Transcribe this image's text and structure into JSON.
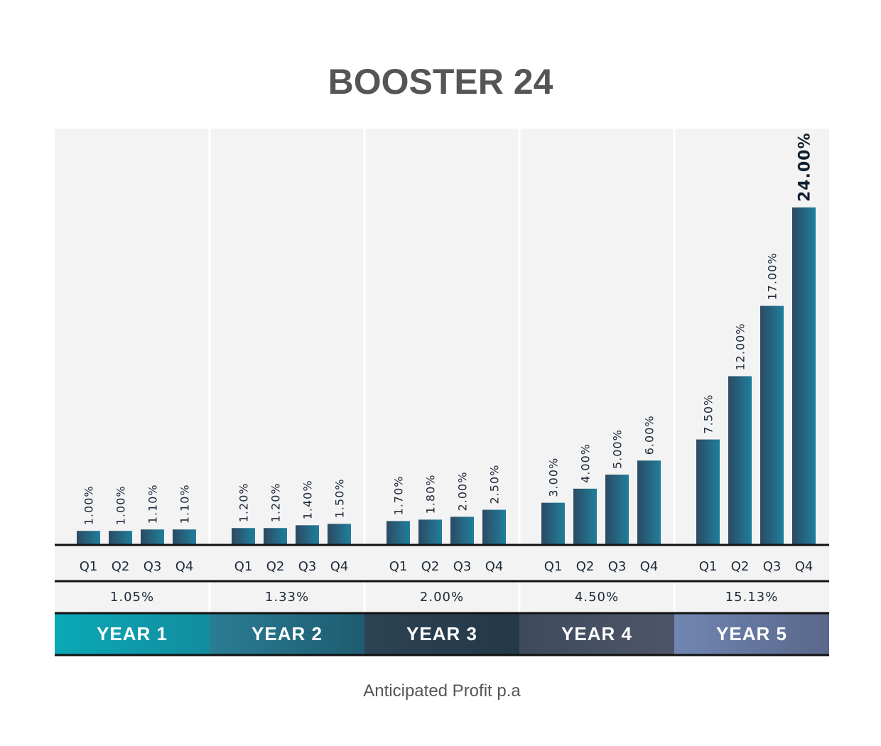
{
  "chart_data": {
    "type": "bar",
    "title": "BOOSTER 24",
    "xlabel": "Anticipated Profit p.a",
    "ylabel": "",
    "ylim": [
      0,
      24
    ],
    "grid": false,
    "groups": [
      {
        "label": "YEAR 1",
        "color": "#0aa9b6",
        "color2": "#128c9e",
        "average": "1.05%",
        "categories": [
          "Q1",
          "Q2",
          "Q3",
          "Q4"
        ],
        "values": [
          1.0,
          1.0,
          1.1,
          1.1
        ],
        "value_labels": [
          "1.00%",
          "1.00%",
          "1.10%",
          "1.10%"
        ]
      },
      {
        "label": "YEAR 2",
        "color": "#2a7d94",
        "color2": "#1e5c70",
        "average": "1.33%",
        "categories": [
          "Q1",
          "Q2",
          "Q3",
          "Q4"
        ],
        "values": [
          1.2,
          1.2,
          1.4,
          1.5
        ],
        "value_labels": [
          "1.20%",
          "1.20%",
          "1.40%",
          "1.50%"
        ]
      },
      {
        "label": "YEAR 3",
        "color": "#2c4354",
        "color2": "#243847",
        "average": "2.00%",
        "categories": [
          "Q1",
          "Q2",
          "Q3",
          "Q4"
        ],
        "values": [
          1.7,
          1.8,
          2.0,
          2.5
        ],
        "value_labels": [
          "1.70%",
          "1.80%",
          "2.00%",
          "2.50%"
        ]
      },
      {
        "label": "YEAR 4",
        "color": "#3e4a5c",
        "color2": "#4d5668",
        "average": "4.50%",
        "categories": [
          "Q1",
          "Q2",
          "Q3",
          "Q4"
        ],
        "values": [
          3.0,
          4.0,
          5.0,
          6.0
        ],
        "value_labels": [
          "3.00%",
          "4.00%",
          "5.00%",
          "6.00%"
        ]
      },
      {
        "label": "YEAR 5",
        "color": "#7086b2",
        "color2": "#59678a",
        "average": "15.13%",
        "categories": [
          "Q1",
          "Q2",
          "Q3",
          "Q4"
        ],
        "values": [
          7.5,
          12.0,
          17.0,
          24.0
        ],
        "value_labels": [
          "7.50%",
          "12.00%",
          "17.00%",
          "24.00%"
        ]
      }
    ],
    "bar_color_start": "#2c4a63",
    "bar_color_end": "#1f7f9c",
    "panel_color": "#f3f3f3",
    "highlight_bar": "24.00%"
  }
}
